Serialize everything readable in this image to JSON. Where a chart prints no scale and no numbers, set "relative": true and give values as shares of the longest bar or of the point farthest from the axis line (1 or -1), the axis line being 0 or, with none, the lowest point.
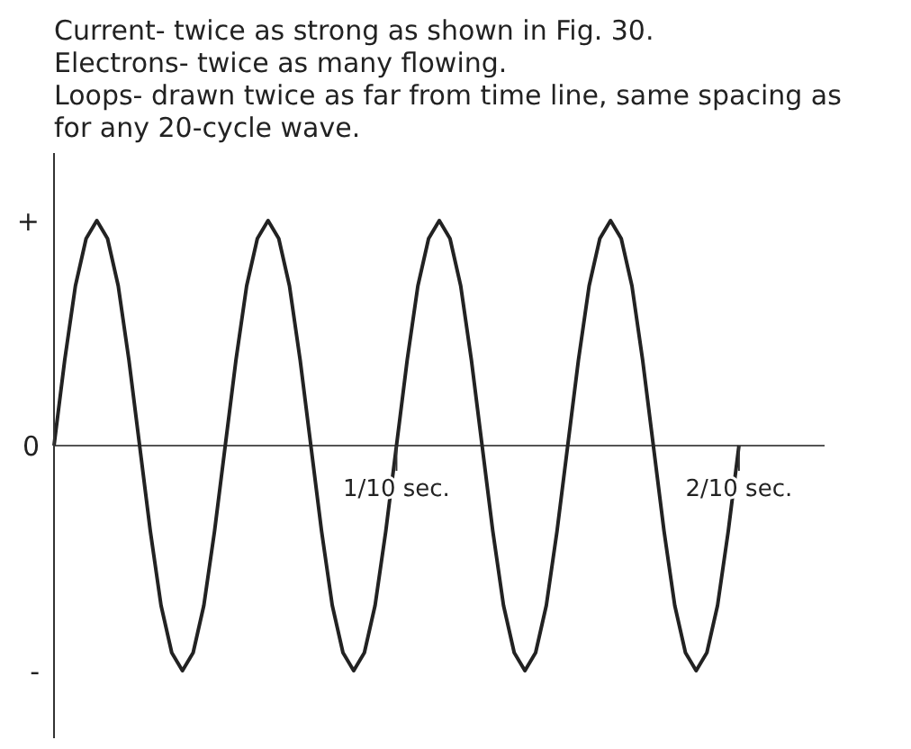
{
  "chart_data": {
    "type": "line",
    "relative": true,
    "annotations": [
      "Current- twice as strong as shown in Fig. 30.",
      "Electrons- twice as many flowing.",
      "Loops- drawn twice as far from time line, same spacing as for any 20-cycle wave.",
      "+",
      "0",
      "-"
    ],
    "categories": [
      null,
      null,
      null,
      null,
      null,
      null,
      null,
      null,
      null,
      null,
      null,
      null,
      null,
      null,
      null,
      null,
      null,
      null,
      null,
      null,
      null,
      null,
      null,
      null,
      null,
      null,
      null,
      null,
      null,
      null,
      null,
      null,
      "1/10 sec.",
      null,
      null,
      null,
      null,
      null,
      null,
      null,
      null,
      null,
      null,
      null,
      null,
      null,
      null,
      null,
      null,
      null,
      null,
      null,
      null,
      null,
      null,
      null,
      null,
      null,
      null,
      null,
      null,
      null,
      null,
      null,
      "2/10 sec.",
      null,
      null,
      null,
      null,
      null,
      null,
      null,
      null
    ],
    "series": [
      {
        "color": "#222222",
        "values": [
          0,
          0.38,
          0.71,
          0.92,
          1,
          0.92,
          0.71,
          0.38,
          0,
          -0.38,
          -0.71,
          -0.92,
          -1,
          -0.92,
          -0.71,
          -0.38,
          0,
          0.38,
          0.71,
          0.92,
          1,
          0.92,
          0.71,
          0.38,
          0,
          -0.38,
          -0.71,
          -0.92,
          -1,
          -0.92,
          -0.71,
          -0.38,
          0,
          0.38,
          0.71,
          0.92,
          1,
          0.92,
          0.71,
          0.38,
          0,
          -0.38,
          -0.71,
          -0.92,
          -1,
          -0.92,
          -0.71,
          -0.38,
          0,
          0.38,
          0.71,
          0.92,
          1,
          0.92,
          0.71,
          0.38,
          0,
          -0.38,
          -0.71,
          -0.92,
          -1,
          -0.92,
          -0.71,
          -0.38,
          0,
          null,
          null,
          null,
          null,
          null,
          null,
          null,
          null
        ]
      }
    ],
    "grid": false,
    "legend": false,
    "marker": "none",
    "line_style": "solid"
  }
}
